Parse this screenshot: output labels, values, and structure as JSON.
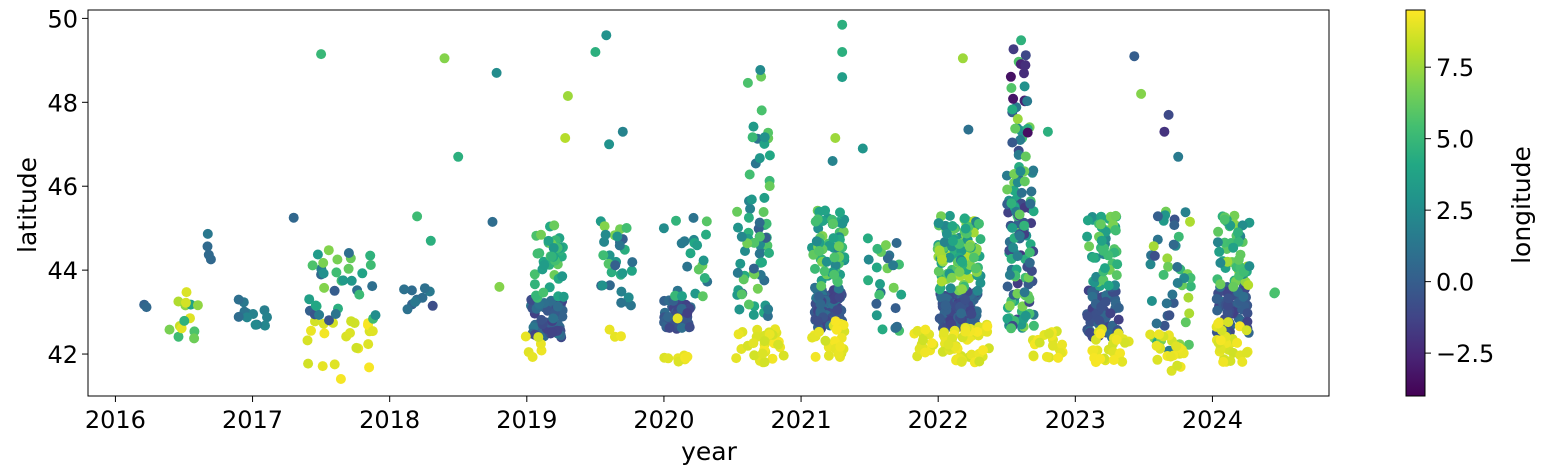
{
  "chart_data": {
    "type": "scatter",
    "title": "",
    "xlabel": "year",
    "ylabel": "latitude",
    "xlim": [
      2015.8,
      2024.85
    ],
    "ylim": [
      41.0,
      50.2
    ],
    "x_ticks": [
      {
        "value": 2016,
        "label": "2016"
      },
      {
        "value": 2017,
        "label": "2017"
      },
      {
        "value": 2018,
        "label": "2018"
      },
      {
        "value": 2019,
        "label": "2019"
      },
      {
        "value": 2020,
        "label": "2020"
      },
      {
        "value": 2021,
        "label": "2021"
      },
      {
        "value": 2022,
        "label": "2022"
      },
      {
        "value": 2023,
        "label": "2023"
      },
      {
        "value": 2024,
        "label": "2024"
      }
    ],
    "y_ticks": [
      {
        "value": 42,
        "label": "42"
      },
      {
        "value": 44,
        "label": "44"
      },
      {
        "value": 46,
        "label": "46"
      },
      {
        "value": 48,
        "label": "48"
      },
      {
        "value": 50,
        "label": "50"
      }
    ],
    "colorbar": {
      "label": "longitude",
      "colormap": "viridis",
      "range": [
        -4.0,
        9.5
      ],
      "ticks": [
        {
          "value": -2.5,
          "label": "−2.5"
        },
        {
          "value": 0.0,
          "label": "0.0"
        },
        {
          "value": 2.5,
          "label": "2.5"
        },
        {
          "value": 5.0,
          "label": "5.0"
        },
        {
          "value": 7.5,
          "label": "7.5"
        }
      ]
    },
    "grid": false,
    "clusters": [
      {
        "x": 2016.25,
        "x_spread": 0.04,
        "lat_range": [
          42.9,
          43.2
        ],
        "lon_range": [
          0.0,
          1.0
        ],
        "n": 2
      },
      {
        "x": 2016.5,
        "x_spread": 0.12,
        "lat_range": [
          42.2,
          43.6
        ],
        "lon_range": [
          3.5,
          9.3
        ],
        "n": 14
      },
      {
        "x": 2016.68,
        "x_spread": 0.02,
        "lat_range": [
          44.2,
          45.2
        ],
        "lon_range": [
          0.0,
          1.5
        ],
        "n": 4
      },
      {
        "x": 2017.0,
        "x_spread": 0.12,
        "lat_range": [
          42.6,
          43.3
        ],
        "lon_range": [
          0.5,
          2.5
        ],
        "n": 12
      },
      {
        "x": 2017.65,
        "x_spread": 0.25,
        "lat_range": [
          41.4,
          42.9
        ],
        "lon_range": [
          8.5,
          9.4
        ],
        "n": 22
      },
      {
        "x": 2017.65,
        "x_spread": 0.25,
        "lat_range": [
          42.8,
          44.5
        ],
        "lon_range": [
          -0.5,
          7.0
        ],
        "n": 34
      },
      {
        "x": 2018.2,
        "x_spread": 0.12,
        "lat_range": [
          42.9,
          43.6
        ],
        "lon_range": [
          -1.0,
          1.5
        ],
        "n": 10
      },
      {
        "x": 2019.15,
        "x_spread": 0.12,
        "lat_range": [
          42.4,
          43.3
        ],
        "lon_range": [
          -1.5,
          1.5
        ],
        "n": 55
      },
      {
        "x": 2019.15,
        "x_spread": 0.12,
        "lat_range": [
          43.3,
          45.1
        ],
        "lon_range": [
          3.0,
          7.0
        ],
        "n": 40
      },
      {
        "x": 2019.05,
        "x_spread": 0.06,
        "lat_range": [
          41.9,
          42.5
        ],
        "lon_range": [
          8.5,
          9.4
        ],
        "n": 6
      },
      {
        "x": 2019.65,
        "x_spread": 0.12,
        "lat_range": [
          43.0,
          45.2
        ],
        "lon_range": [
          0.0,
          7.0
        ],
        "n": 30
      },
      {
        "x": 2019.7,
        "x_spread": 0.1,
        "lat_range": [
          42.4,
          42.6
        ],
        "lon_range": [
          8.5,
          9.3
        ],
        "n": 3
      },
      {
        "x": 2020.1,
        "x_spread": 0.1,
        "lat_range": [
          42.6,
          43.3
        ],
        "lon_range": [
          -1.5,
          1.0
        ],
        "n": 50
      },
      {
        "x": 2020.1,
        "x_spread": 0.1,
        "lat_range": [
          41.8,
          42.0
        ],
        "lon_range": [
          8.8,
          9.4
        ],
        "n": 8
      },
      {
        "x": 2020.2,
        "x_spread": 0.12,
        "lat_range": [
          43.3,
          45.4
        ],
        "lon_range": [
          1.0,
          7.0
        ],
        "n": 22
      },
      {
        "x": 2020.65,
        "x_spread": 0.12,
        "lat_range": [
          42.8,
          45.5
        ],
        "lon_range": [
          0.0,
          7.0
        ],
        "n": 50
      },
      {
        "x": 2020.7,
        "x_spread": 0.1,
        "lat_range": [
          45.5,
          48.8
        ],
        "lon_range": [
          1.0,
          6.5
        ],
        "n": 20
      },
      {
        "x": 2020.7,
        "x_spread": 0.18,
        "lat_range": [
          41.8,
          42.6
        ],
        "lon_range": [
          8.5,
          9.4
        ],
        "n": 30
      },
      {
        "x": 2021.2,
        "x_spread": 0.1,
        "lat_range": [
          42.6,
          43.6
        ],
        "lon_range": [
          -1.5,
          1.5
        ],
        "n": 80
      },
      {
        "x": 2021.2,
        "x_spread": 0.12,
        "lat_range": [
          43.6,
          45.5
        ],
        "lon_range": [
          2.0,
          7.0
        ],
        "n": 60
      },
      {
        "x": 2021.2,
        "x_spread": 0.12,
        "lat_range": [
          41.9,
          42.8
        ],
        "lon_range": [
          8.5,
          9.4
        ],
        "n": 25
      },
      {
        "x": 2021.6,
        "x_spread": 0.14,
        "lat_range": [
          42.5,
          44.9
        ],
        "lon_range": [
          0.0,
          7.0
        ],
        "n": 25
      },
      {
        "x": 2021.9,
        "x_spread": 0.08,
        "lat_range": [
          41.9,
          42.6
        ],
        "lon_range": [
          8.5,
          9.4
        ],
        "n": 15
      },
      {
        "x": 2022.15,
        "x_spread": 0.14,
        "lat_range": [
          42.6,
          43.5
        ],
        "lon_range": [
          -1.5,
          0.8
        ],
        "n": 110
      },
      {
        "x": 2022.15,
        "x_spread": 0.16,
        "lat_range": [
          43.5,
          45.3
        ],
        "lon_range": [
          2.0,
          8.0
        ],
        "n": 110
      },
      {
        "x": 2022.2,
        "x_spread": 0.18,
        "lat_range": [
          41.8,
          42.7
        ],
        "lon_range": [
          8.5,
          9.4
        ],
        "n": 50
      },
      {
        "x": 2022.6,
        "x_spread": 0.1,
        "lat_range": [
          42.6,
          46.5
        ],
        "lon_range": [
          -2.0,
          7.0
        ],
        "n": 110
      },
      {
        "x": 2022.6,
        "x_spread": 0.07,
        "lat_range": [
          46.5,
          49.7
        ],
        "lon_range": [
          -3.8,
          7.5
        ],
        "n": 30
      },
      {
        "x": 2022.8,
        "x_spread": 0.12,
        "lat_range": [
          41.9,
          42.6
        ],
        "lon_range": [
          8.5,
          9.4
        ],
        "n": 20
      },
      {
        "x": 2023.2,
        "x_spread": 0.12,
        "lat_range": [
          42.4,
          43.6
        ],
        "lon_range": [
          -1.5,
          1.0
        ],
        "n": 60
      },
      {
        "x": 2023.2,
        "x_spread": 0.12,
        "lat_range": [
          43.6,
          45.3
        ],
        "lon_range": [
          2.0,
          7.0
        ],
        "n": 50
      },
      {
        "x": 2023.25,
        "x_spread": 0.14,
        "lat_range": [
          41.8,
          42.6
        ],
        "lon_range": [
          8.5,
          9.4
        ],
        "n": 25
      },
      {
        "x": 2023.7,
        "x_spread": 0.16,
        "lat_range": [
          42.0,
          45.5
        ],
        "lon_range": [
          -1.0,
          8.0
        ],
        "n": 45
      },
      {
        "x": 2023.7,
        "x_spread": 0.16,
        "lat_range": [
          41.6,
          42.5
        ],
        "lon_range": [
          8.5,
          9.4
        ],
        "n": 20
      },
      {
        "x": 2024.15,
        "x_spread": 0.12,
        "lat_range": [
          42.5,
          43.6
        ],
        "lon_range": [
          -1.5,
          1.0
        ],
        "n": 60
      },
      {
        "x": 2024.15,
        "x_spread": 0.12,
        "lat_range": [
          43.6,
          45.3
        ],
        "lon_range": [
          2.0,
          8.0
        ],
        "n": 50
      },
      {
        "x": 2024.15,
        "x_spread": 0.12,
        "lat_range": [
          41.8,
          42.8
        ],
        "lon_range": [
          8.5,
          9.4
        ],
        "n": 30
      },
      {
        "x": 2024.45,
        "x_spread": 0.01,
        "lat_range": [
          43.3,
          43.5
        ],
        "lon_range": [
          5.0,
          6.0
        ],
        "n": 2
      }
    ],
    "outliers": [
      {
        "x": 2017.5,
        "y": 49.15,
        "lon": 5.0
      },
      {
        "x": 2017.3,
        "y": 45.25,
        "lon": 0.5
      },
      {
        "x": 2018.2,
        "y": 45.28,
        "lon": 5.2
      },
      {
        "x": 2018.3,
        "y": 44.7,
        "lon": 4.5
      },
      {
        "x": 2018.4,
        "y": 49.05,
        "lon": 7.0
      },
      {
        "x": 2018.5,
        "y": 46.7,
        "lon": 4.5
      },
      {
        "x": 2018.75,
        "y": 45.15,
        "lon": 0.8
      },
      {
        "x": 2018.78,
        "y": 48.7,
        "lon": 2.5
      },
      {
        "x": 2018.8,
        "y": 43.6,
        "lon": 7.0
      },
      {
        "x": 2019.28,
        "y": 47.15,
        "lon": 8.0
      },
      {
        "x": 2019.3,
        "y": 48.15,
        "lon": 7.5
      },
      {
        "x": 2019.5,
        "y": 49.2,
        "lon": 4.5
      },
      {
        "x": 2019.58,
        "y": 49.6,
        "lon": 2.8
      },
      {
        "x": 2019.6,
        "y": 47.0,
        "lon": 2.8
      },
      {
        "x": 2019.7,
        "y": 47.3,
        "lon": 2.0
      },
      {
        "x": 2020.0,
        "y": 45.0,
        "lon": 2.5
      },
      {
        "x": 2020.1,
        "y": 42.85,
        "lon": 9.0
      },
      {
        "x": 2021.3,
        "y": 49.85,
        "lon": 4.5
      },
      {
        "x": 2021.3,
        "y": 49.2,
        "lon": 4.5
      },
      {
        "x": 2021.3,
        "y": 48.6,
        "lon": 3.5
      },
      {
        "x": 2021.25,
        "y": 47.15,
        "lon": 7.5
      },
      {
        "x": 2021.45,
        "y": 46.9,
        "lon": 3.0
      },
      {
        "x": 2021.23,
        "y": 46.6,
        "lon": 2.0
      },
      {
        "x": 2022.18,
        "y": 49.05,
        "lon": 7.5
      },
      {
        "x": 2022.22,
        "y": 47.35,
        "lon": 1.0
      },
      {
        "x": 2022.8,
        "y": 47.3,
        "lon": 4.5
      },
      {
        "x": 2023.43,
        "y": 49.1,
        "lon": 0.0
      },
      {
        "x": 2023.48,
        "y": 48.2,
        "lon": 7.0
      },
      {
        "x": 2023.65,
        "y": 47.3,
        "lon": -2.0
      },
      {
        "x": 2023.68,
        "y": 47.7,
        "lon": -1.0
      },
      {
        "x": 2023.75,
        "y": 46.7,
        "lon": 1.5
      }
    ]
  }
}
